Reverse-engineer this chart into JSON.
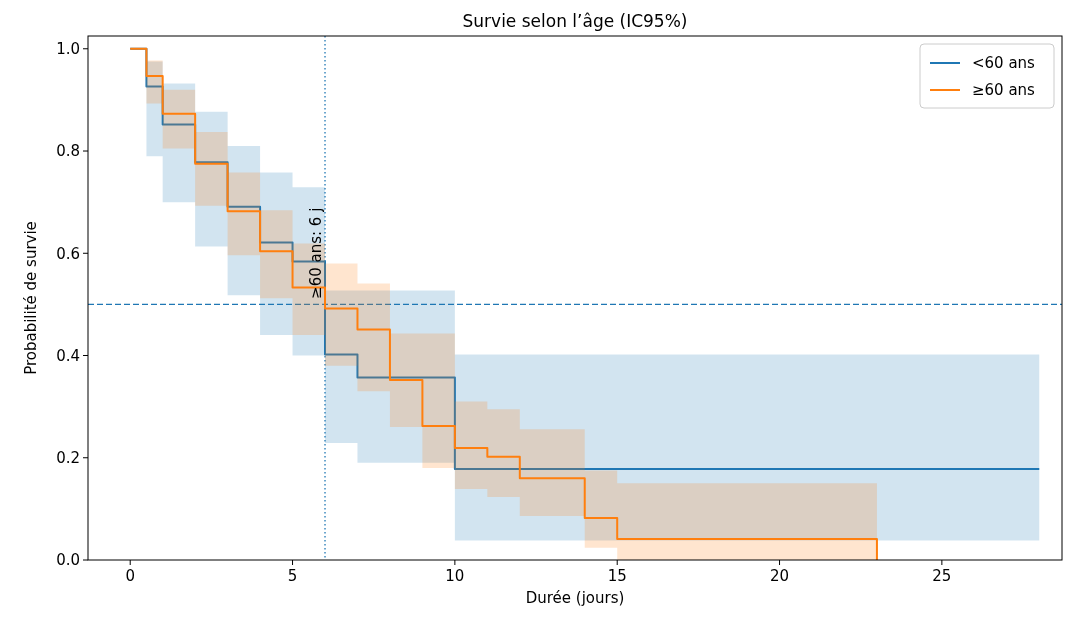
{
  "chart_data": {
    "type": "step",
    "title": "Survie selon l’âge (IC95%)",
    "xlabel": "Durée (jours)",
    "ylabel": "Probabilité de survie",
    "xlim": [
      -1.3,
      28.7
    ],
    "xticks": [
      0,
      5,
      10,
      15,
      20,
      25
    ],
    "ylim": [
      0,
      1.025
    ],
    "yticks": [
      {
        "value": 0,
        "label": "0.0"
      },
      {
        "value": 0.2,
        "label": "0.2"
      },
      {
        "value": 0.4,
        "label": "0.4"
      },
      {
        "value": 0.6,
        "label": "0.6"
      },
      {
        "value": 0.8,
        "label": "0.8"
      },
      {
        "value": 1,
        "label": "1.0"
      }
    ],
    "legend": "top right",
    "grid": false,
    "series": [
      {
        "name": "<60 ans",
        "color": "#1f77b4",
        "x": [
          0,
          0.5,
          1,
          2,
          3,
          4,
          5,
          6,
          7,
          10,
          28
        ],
        "values": [
          1,
          0.926,
          0.852,
          0.778,
          0.691,
          0.621,
          0.584,
          0.402,
          0.357,
          0.178,
          0.178
        ],
        "lower": [
          1,
          0.79,
          0.7,
          0.613,
          0.518,
          0.44,
          0.4,
          0.229,
          0.19,
          0.038,
          0.038
        ],
        "upper": [
          1,
          0.975,
          0.932,
          0.877,
          0.81,
          0.758,
          0.729,
          0.527,
          0.527,
          0.402,
          0.402
        ]
      },
      {
        "name": "≥60 ans",
        "color": "#ff7f0e",
        "x": [
          0,
          0.5,
          1,
          2,
          3,
          4,
          5,
          6,
          7,
          8,
          9,
          10,
          11,
          12,
          14,
          15,
          23
        ],
        "values": [
          1,
          0.947,
          0.873,
          0.775,
          0.682,
          0.604,
          0.533,
          0.492,
          0.451,
          0.352,
          0.262,
          0.219,
          0.202,
          0.16,
          0.082,
          0.041,
          0
        ],
        "lower": [
          1,
          0.893,
          0.805,
          0.693,
          0.596,
          0.512,
          0.44,
          0.38,
          0.33,
          0.26,
          0.18,
          0.139,
          0.123,
          0.086,
          0.024,
          0,
          0
        ],
        "upper": [
          1,
          0.977,
          0.92,
          0.837,
          0.758,
          0.684,
          0.619,
          0.58,
          0.541,
          0.443,
          0.443,
          0.31,
          0.295,
          0.256,
          0.175,
          0.15,
          0
        ]
      }
    ],
    "ref_lines": [
      {
        "axis": "y",
        "value": 0.5,
        "color": "#1f77b4",
        "line_style": "dashed"
      },
      {
        "axis": "x",
        "value": 6,
        "color": "#1f77b4",
        "line_style": "dotted"
      }
    ],
    "annotations": [
      {
        "text": "≥60 ans: 6 j",
        "x": 6,
        "y": 0.6
      }
    ]
  }
}
